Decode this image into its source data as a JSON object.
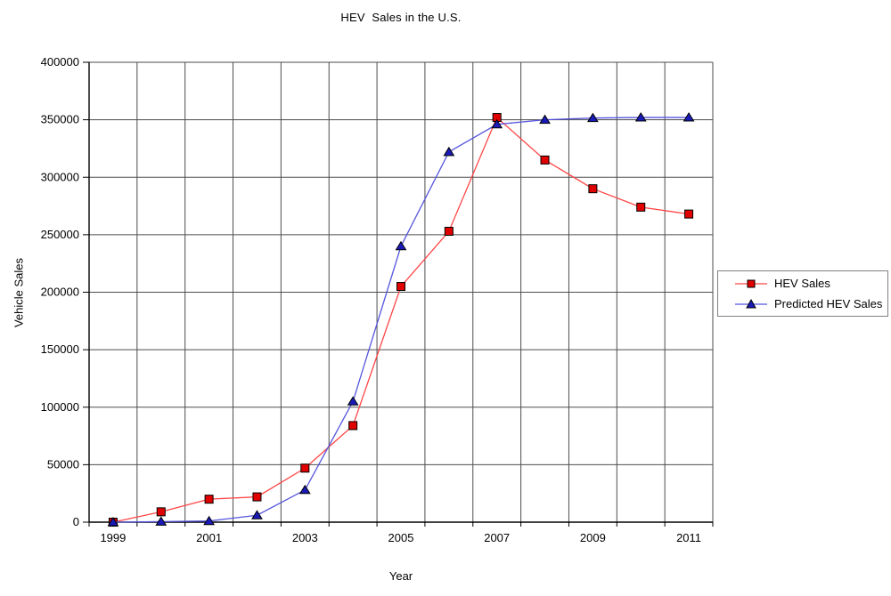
{
  "chart_data": {
    "type": "line",
    "title": "HEV  Sales in the U.S.",
    "xlabel": "Year",
    "ylabel": "Vehicle Sales",
    "categories": [
      "1999",
      "2000",
      "2001",
      "2002",
      "2003",
      "2004",
      "2005",
      "2006",
      "2007",
      "2008",
      "2009",
      "2010",
      "2011"
    ],
    "x_tick_label_step": 2,
    "ylim": [
      0,
      400000
    ],
    "y_ticks": [
      0,
      50000,
      100000,
      150000,
      200000,
      250000,
      300000,
      350000,
      400000
    ],
    "grid": true,
    "legend_position": "right-middle",
    "colors": {
      "background": "#ffffff",
      "grid": "#4d4d4d",
      "axis": "#000000",
      "text": "#000000",
      "legend_border": "#808080",
      "marker_outline": "#000000"
    },
    "series": [
      {
        "name": "HEV Sales",
        "marker": "square",
        "line_color": "#ff4444",
        "marker_color": "#e00000",
        "values": [
          0,
          9000,
          20000,
          22000,
          47000,
          84000,
          205000,
          253000,
          352000,
          315000,
          290000,
          274000,
          268000
        ]
      },
      {
        "name": "Predicted HEV Sales",
        "marker": "triangle",
        "line_color": "#5555dd",
        "marker_color": "#1a1ab8",
        "values": [
          0,
          500,
          1000,
          6000,
          28000,
          105000,
          240000,
          322000,
          346000,
          350000,
          351500,
          352000,
          352000
        ]
      }
    ]
  }
}
